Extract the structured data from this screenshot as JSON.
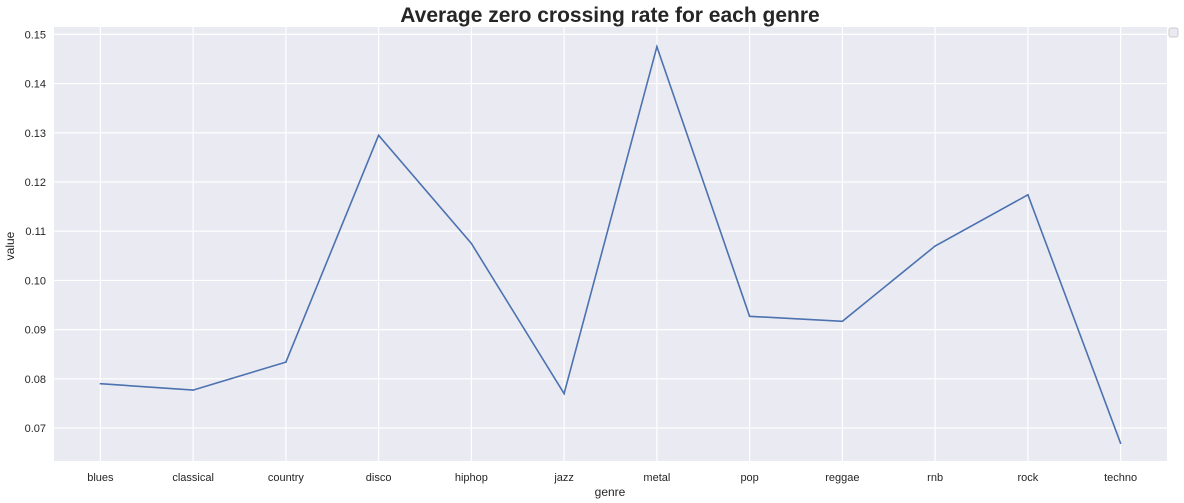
{
  "chart_data": {
    "type": "line",
    "title": "Average zero crossing rate for each genre",
    "xlabel": "genre",
    "ylabel": "value",
    "categories": [
      "blues",
      "classical",
      "country",
      "disco",
      "hiphop",
      "jazz",
      "metal",
      "pop",
      "reggae",
      "rnb",
      "rock",
      "techno"
    ],
    "series": [
      {
        "values": [
          0.079,
          0.0777,
          0.0834,
          0.1295,
          0.1075,
          0.077,
          0.1475,
          0.0927,
          0.0917,
          0.107,
          0.1174,
          0.0669
        ]
      }
    ],
    "yticks": [
      "0.07",
      "0.08",
      "0.09",
      "0.10",
      "0.11",
      "0.12",
      "0.13",
      "0.14",
      "0.15"
    ],
    "ylim": [
      0.0633,
      0.1515
    ],
    "grid": true,
    "legend": "top-right, empty",
    "colors": {
      "line": "#4c72b0",
      "background": "#eaeaf2",
      "grid": "#ffffff"
    }
  }
}
